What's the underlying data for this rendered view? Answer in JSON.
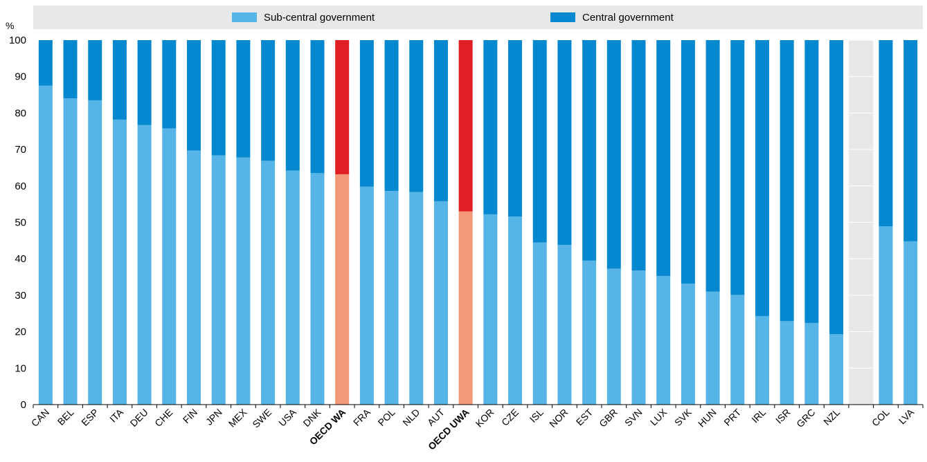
{
  "chart_data": {
    "type": "bar",
    "stacked": true,
    "unit_label": "%",
    "ylim": [
      0,
      100
    ],
    "yticks": [
      0,
      10,
      20,
      30,
      40,
      50,
      60,
      70,
      80,
      90,
      100
    ],
    "categories": [
      "CAN",
      "BEL",
      "ESP",
      "ITA",
      "DEU",
      "CHE",
      "FIN",
      "JPN",
      "MEX",
      "SWE",
      "USA",
      "DNK",
      "OECD WA",
      "FRA",
      "POL",
      "NLD",
      "AUT",
      "OECD UWA",
      "KOR",
      "CZE",
      "ISL",
      "NOR",
      "EST",
      "GBR",
      "SVN",
      "LUX",
      "SVK",
      "HUN",
      "PRT",
      "IRL",
      "ISR",
      "GRC",
      "NZL",
      "",
      "COL",
      "LVA"
    ],
    "highlight_categories": [
      "OECD WA",
      "OECD UWA"
    ],
    "series": [
      {
        "name": "Sub-central government",
        "color": "#57b4e6",
        "highlight_color": "#f4987a",
        "values": [
          87.5,
          84,
          83.5,
          78.2,
          76.7,
          75.8,
          69.7,
          68.4,
          67.8,
          66.9,
          64.2,
          63.5,
          63.2,
          59.8,
          58.6,
          58.3,
          55.8,
          53,
          52.2,
          51.6,
          44.5,
          43.8,
          39.5,
          37.3,
          36.8,
          35.3,
          33.2,
          31,
          30.1,
          24.3,
          22.9,
          22.4,
          19.3,
          null,
          48.9,
          44.8
        ]
      },
      {
        "name": "Central government",
        "color": "#0588cf",
        "highlight_color": "#e11e24",
        "values": [
          12.5,
          16,
          16.5,
          21.8,
          23.3,
          24.2,
          30.3,
          31.6,
          32.2,
          33.1,
          35.8,
          36.5,
          36.8,
          40.2,
          41.4,
          41.7,
          44.2,
          47,
          47.8,
          48.4,
          55.5,
          56.2,
          60.5,
          62.7,
          63.2,
          64.7,
          66.8,
          69,
          69.9,
          75.7,
          77.1,
          77.6,
          80.7,
          null,
          51.1,
          55.2
        ]
      }
    ],
    "legend": {
      "placement": "top",
      "entries": [
        "Sub-central government",
        "Central government"
      ]
    },
    "grid": false,
    "colors": {
      "legend_band": "#e7e8e9",
      "plot_background": "#ffffff",
      "gap_band": "#e7e8e9"
    }
  }
}
